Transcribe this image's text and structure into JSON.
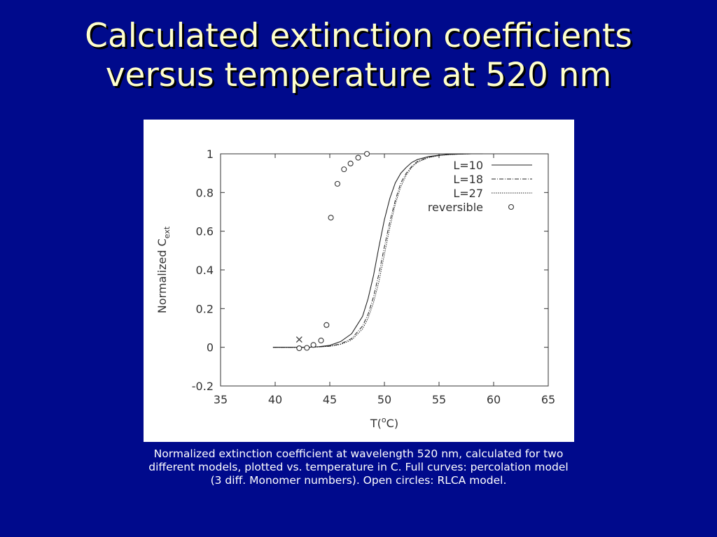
{
  "slide": {
    "title_lines": [
      "Calculated extinction coefficients",
      "versus temperature at 520 nm"
    ],
    "caption_lines": [
      "Normalized extinction coefficient at  wavelength 520 nm, calculated for two",
      "different models, plotted vs. temperature in C.   Full curves: percolation model",
      "(3 diff. Monomer numbers).   Open circles: RLCA model."
    ],
    "colors": {
      "background": "#000a8c",
      "title": "#ffffcc",
      "caption": "#ffffff"
    }
  },
  "chart_data": {
    "type": "line",
    "title": "",
    "xlabel": {
      "base": "T(",
      "sup": "o",
      "rest": "C)"
    },
    "ylabel": {
      "base": "Normalized C",
      "sub": "ext"
    },
    "xlim": [
      35,
      65
    ],
    "ylim": [
      -0.2,
      1
    ],
    "xticks": [
      35,
      40,
      45,
      50,
      55,
      60,
      65
    ],
    "yticks": [
      -0.2,
      0,
      0.2,
      0.4,
      0.6,
      0.8,
      1
    ],
    "grid": false,
    "legend_position": "top-right",
    "series": [
      {
        "name": "L=10",
        "style": "solid",
        "x": [
          39.8,
          43,
          44,
          45,
          46,
          47,
          48,
          48.5,
          49,
          49.5,
          50,
          50.5,
          51,
          51.5,
          52,
          52.5,
          53,
          54,
          55,
          56,
          57,
          58,
          59
        ],
        "y": [
          0,
          0,
          0.003,
          0.01,
          0.03,
          0.07,
          0.16,
          0.25,
          0.37,
          0.52,
          0.66,
          0.77,
          0.85,
          0.9,
          0.93,
          0.955,
          0.97,
          0.985,
          0.993,
          0.997,
          0.999,
          1,
          1
        ]
      },
      {
        "name": "L=18",
        "style": "dashdot",
        "x": [
          39.8,
          43,
          44,
          45,
          46,
          47,
          48,
          48.5,
          49,
          49.5,
          50,
          50.5,
          51,
          51.5,
          52,
          52.5,
          53,
          54,
          55,
          56,
          57,
          58,
          59
        ],
        "y": [
          0,
          0,
          0.002,
          0.006,
          0.018,
          0.045,
          0.11,
          0.17,
          0.26,
          0.38,
          0.52,
          0.65,
          0.76,
          0.85,
          0.9,
          0.935,
          0.96,
          0.982,
          0.992,
          0.997,
          0.999,
          1,
          1
        ]
      },
      {
        "name": "L=27",
        "style": "dotted",
        "x": [
          39.8,
          43,
          44,
          45,
          46,
          47,
          48,
          48.5,
          49,
          49.5,
          50,
          50.5,
          51,
          51.5,
          52,
          52.5,
          53,
          54,
          55,
          56,
          57,
          58,
          59
        ],
        "y": [
          0,
          0,
          0.002,
          0.005,
          0.015,
          0.038,
          0.095,
          0.15,
          0.23,
          0.34,
          0.48,
          0.62,
          0.74,
          0.83,
          0.89,
          0.93,
          0.955,
          0.98,
          0.991,
          0.996,
          0.999,
          1,
          1
        ]
      },
      {
        "name": "reversible",
        "style": "markers",
        "marker": "circle",
        "x": [
          42.2,
          42.9,
          43.5,
          44.2,
          44.7,
          45.1,
          45.7,
          46.3,
          46.9,
          47.6,
          48.4
        ],
        "y": [
          -0.005,
          -0.003,
          0.012,
          0.035,
          0.115,
          0.67,
          0.845,
          0.92,
          0.95,
          0.98,
          1.0
        ]
      }
    ],
    "annotations": [
      {
        "type": "cross-marker",
        "x": 42.2,
        "y": 0.04
      }
    ]
  }
}
